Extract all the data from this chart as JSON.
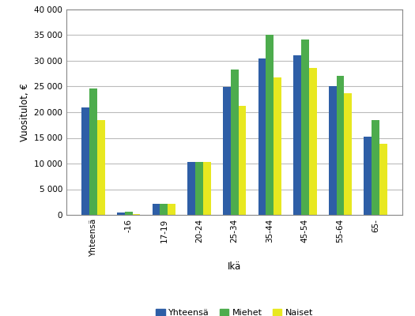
{
  "categories": [
    "Yhteensä",
    "-16",
    "17-19",
    "20-24",
    "25-34",
    "35-44",
    "45-54",
    "55-64",
    "65-"
  ],
  "series": {
    "Yhteensä": [
      21000,
      500,
      2200,
      10300,
      24900,
      30500,
      31000,
      25100,
      15200
    ],
    "Miehet": [
      24600,
      600,
      2200,
      10300,
      28300,
      35000,
      34200,
      27100,
      18400
    ],
    "Naiset": [
      18500,
      100,
      2200,
      10300,
      21300,
      26800,
      28600,
      23700,
      13800
    ]
  },
  "colors": {
    "Yhteensä": "#2e5ea6",
    "Miehet": "#4dac4d",
    "Naiset": "#e8e820"
  },
  "ylabel": "Vuositulot, €",
  "xlabel": "Ikä",
  "ylim": [
    0,
    40000
  ],
  "yticks": [
    0,
    5000,
    10000,
    15000,
    20000,
    25000,
    30000,
    35000,
    40000
  ],
  "bar_width": 0.22,
  "legend_labels": [
    "Yhteensä",
    "Miehet",
    "Naiset"
  ],
  "background_color": "#ffffff",
  "grid_color": "#bbbbbb"
}
